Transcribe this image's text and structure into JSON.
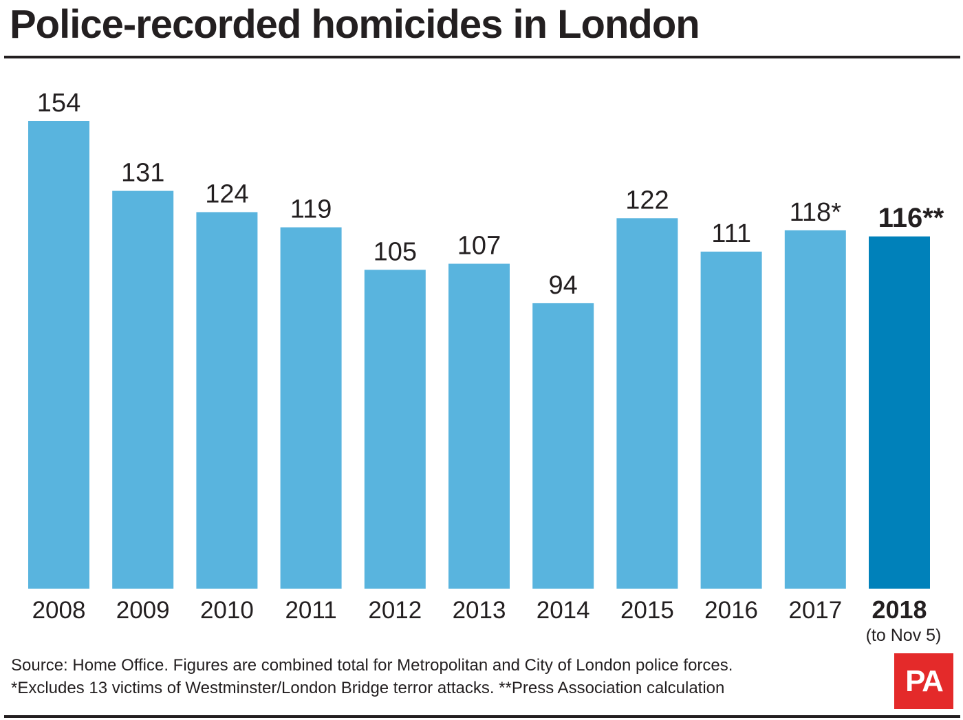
{
  "header": {
    "title": "Police-recorded homicides in London"
  },
  "chart_data": {
    "type": "bar",
    "categories": [
      "2008",
      "2009",
      "2010",
      "2011",
      "2012",
      "2013",
      "2014",
      "2015",
      "2016",
      "2017",
      "2018"
    ],
    "category_sublabels": [
      "",
      "",
      "",
      "",
      "",
      "",
      "",
      "",
      "",
      "",
      "(to Nov 5)"
    ],
    "values": [
      154,
      131,
      124,
      119,
      105,
      107,
      94,
      122,
      111,
      118,
      116
    ],
    "data_labels": [
      "154",
      "131",
      "124",
      "119",
      "105",
      "107",
      "94",
      "122",
      "111",
      "118*",
      "116**"
    ],
    "highlight_index": 10,
    "colors": {
      "bar": "#59b4de",
      "highlight": "#0081ba"
    },
    "ylim": [
      0,
      154
    ],
    "grid": false,
    "xlabel": "",
    "ylabel": ""
  },
  "footer": {
    "source": "Source: Home Office. Figures are combined total for Metropolitan and City of London police forces.",
    "note": "*Excludes 13 victims of Westminster/London Bridge terror attacks. **Press Association calculation",
    "logo_text": "PA"
  }
}
